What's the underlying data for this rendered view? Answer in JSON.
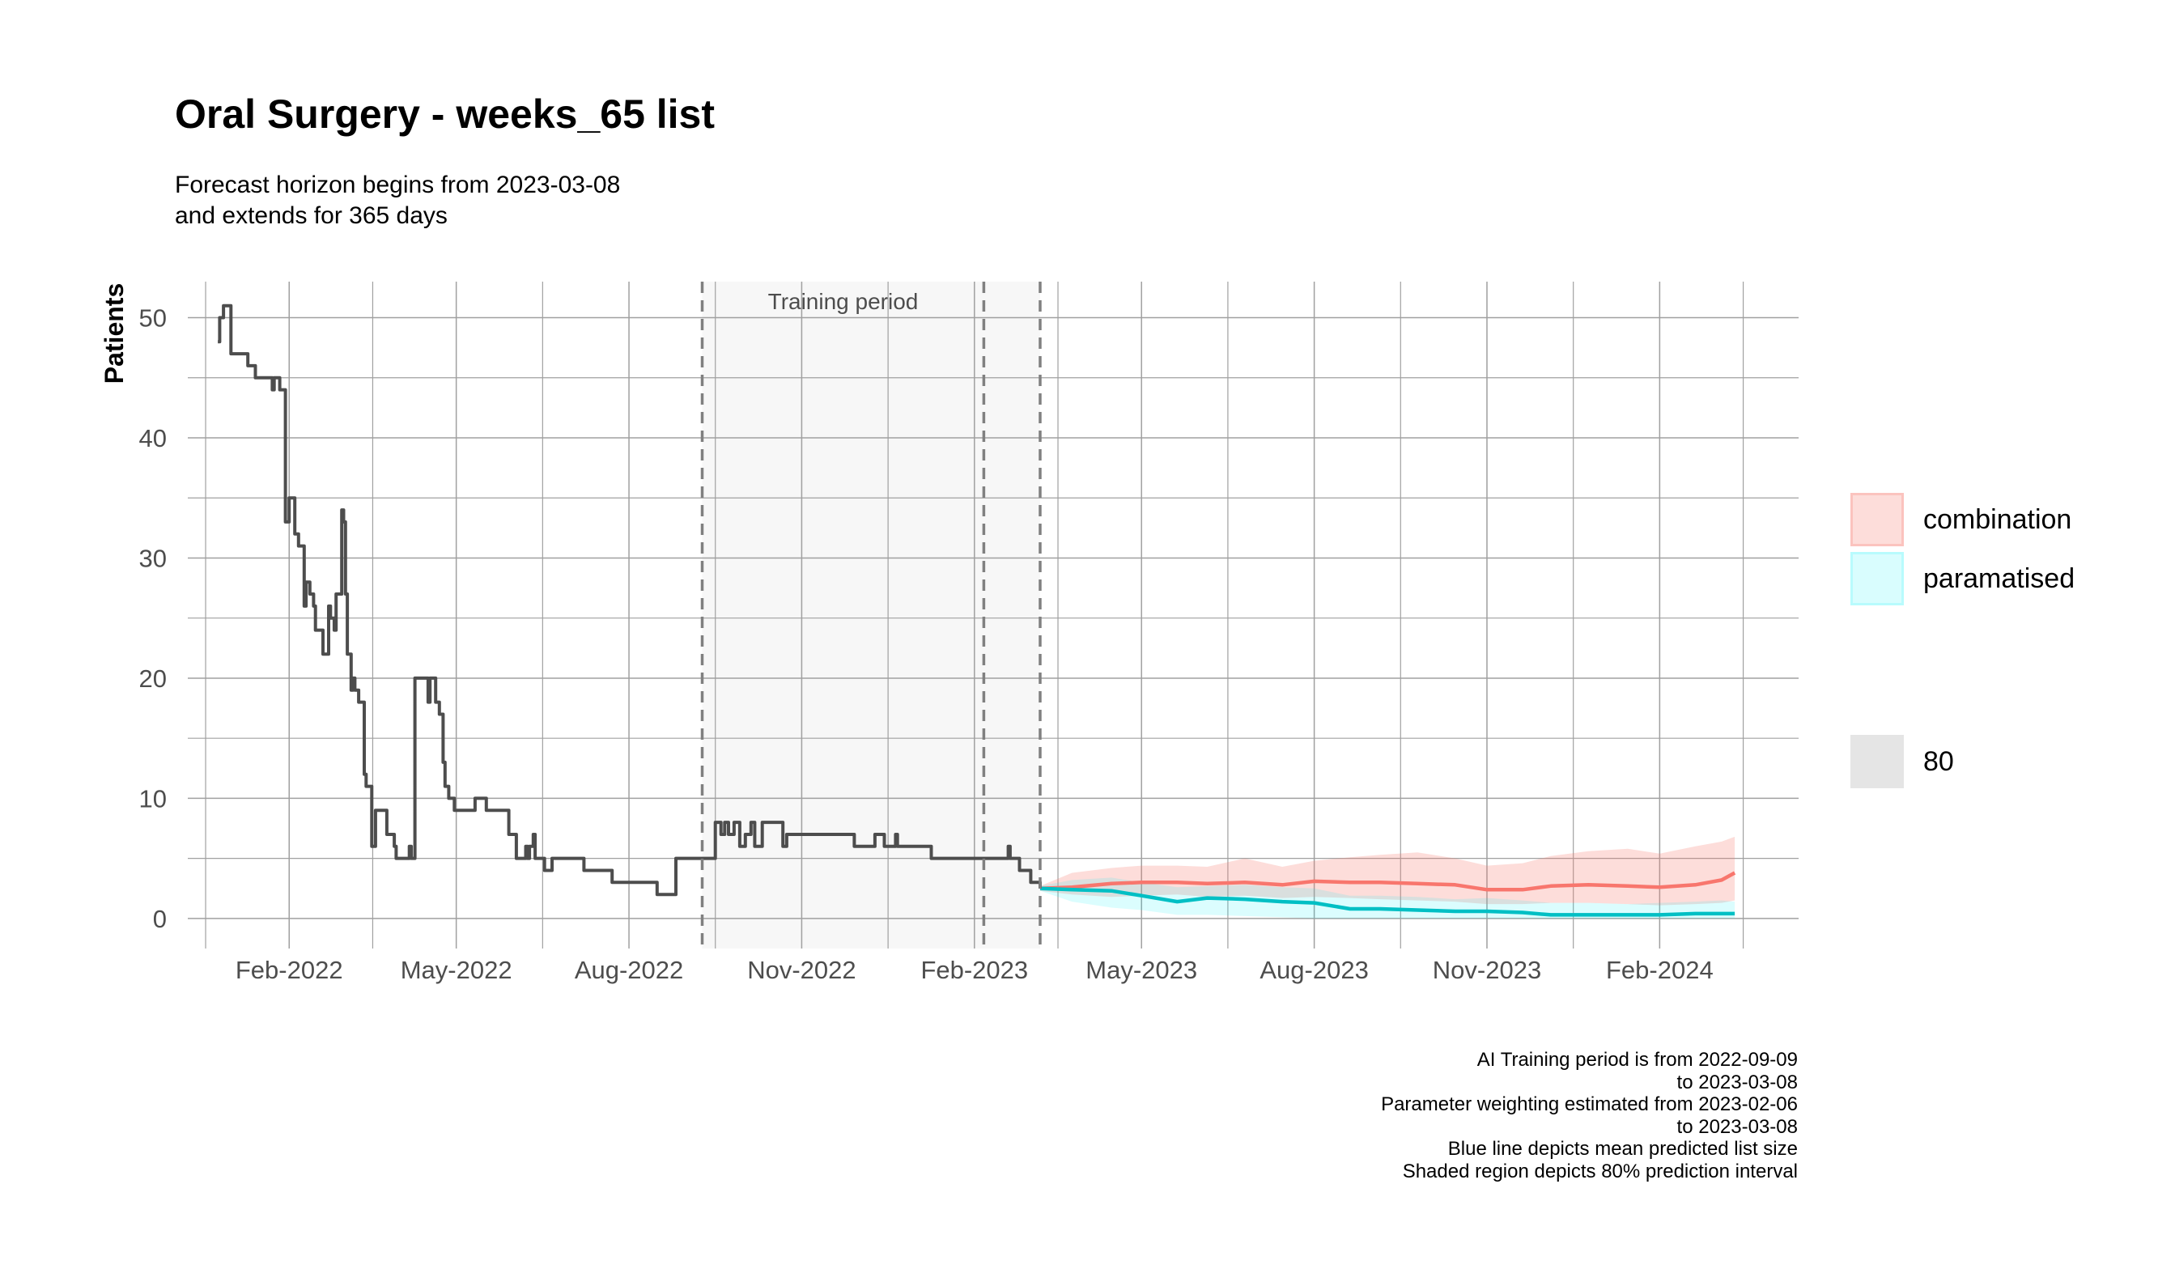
{
  "chart_data": {
    "type": "line",
    "title": "Oral Surgery - weeks_65 list",
    "subtitle": [
      "Forecast horizon begins from 2023-03-08",
      "and extends for 365 days"
    ],
    "xlabel": "",
    "ylabel": "Patients",
    "xlim": [
      "2021-12-09",
      "2024-04-15"
    ],
    "ylim": [
      -2.5,
      53
    ],
    "y_ticks": [
      0,
      10,
      20,
      30,
      40,
      50
    ],
    "x_ticks": [
      {
        "date": "2022-02-01",
        "label": "Feb-2022"
      },
      {
        "date": "2022-05-01",
        "label": "May-2022"
      },
      {
        "date": "2022-08-01",
        "label": "Aug-2022"
      },
      {
        "date": "2022-11-01",
        "label": "Nov-2022"
      },
      {
        "date": "2023-02-01",
        "label": "Feb-2023"
      },
      {
        "date": "2023-05-01",
        "label": "May-2023"
      },
      {
        "date": "2023-08-01",
        "label": "Aug-2023"
      },
      {
        "date": "2023-11-01",
        "label": "Nov-2023"
      },
      {
        "date": "2024-02-01",
        "label": "Feb-2024"
      }
    ],
    "grid": true,
    "legend_position": "right",
    "training_period": {
      "start": "2022-09-09",
      "end": "2023-03-08",
      "label": "Training period"
    },
    "vlines": [
      "2022-09-09",
      "2023-02-06",
      "2023-03-08"
    ],
    "observed": {
      "color": "#4d4d4d",
      "points": [
        [
          "2021-12-25",
          48
        ],
        [
          "2021-12-26",
          50
        ],
        [
          "2021-12-28",
          51
        ],
        [
          "2021-12-31",
          51
        ],
        [
          "2022-01-01",
          47
        ],
        [
          "2022-01-09",
          47
        ],
        [
          "2022-01-10",
          46
        ],
        [
          "2022-01-13",
          46
        ],
        [
          "2022-01-14",
          45
        ],
        [
          "2022-01-22",
          45
        ],
        [
          "2022-01-23",
          44
        ],
        [
          "2022-01-24",
          45
        ],
        [
          "2022-01-26",
          45
        ],
        [
          "2022-01-27",
          44
        ],
        [
          "2022-01-29",
          44
        ],
        [
          "2022-01-30",
          33
        ],
        [
          "2022-02-01",
          35
        ],
        [
          "2022-02-03",
          35
        ],
        [
          "2022-02-04",
          32
        ],
        [
          "2022-02-06",
          31
        ],
        [
          "2022-02-08",
          31
        ],
        [
          "2022-02-09",
          26
        ],
        [
          "2022-02-10",
          28
        ],
        [
          "2022-02-12",
          27
        ],
        [
          "2022-02-14",
          26
        ],
        [
          "2022-02-15",
          24
        ],
        [
          "2022-02-18",
          24
        ],
        [
          "2022-02-19",
          22
        ],
        [
          "2022-02-21",
          22
        ],
        [
          "2022-02-22",
          26
        ],
        [
          "2022-02-23",
          25
        ],
        [
          "2022-02-25",
          24
        ],
        [
          "2022-02-26",
          27
        ],
        [
          "2022-02-28",
          27
        ],
        [
          "2022-03-01",
          34
        ],
        [
          "2022-03-02",
          33
        ],
        [
          "2022-03-03",
          27
        ],
        [
          "2022-03-04",
          22
        ],
        [
          "2022-03-06",
          19
        ],
        [
          "2022-03-07",
          20
        ],
        [
          "2022-03-08",
          19
        ],
        [
          "2022-03-10",
          18
        ],
        [
          "2022-03-13",
          12
        ],
        [
          "2022-03-14",
          11
        ],
        [
          "2022-03-16",
          11
        ],
        [
          "2022-03-17",
          6
        ],
        [
          "2022-03-19",
          9
        ],
        [
          "2022-03-24",
          9
        ],
        [
          "2022-03-25",
          7
        ],
        [
          "2022-03-29",
          6
        ],
        [
          "2022-03-30",
          5
        ],
        [
          "2022-04-05",
          5
        ],
        [
          "2022-04-06",
          6
        ],
        [
          "2022-04-07",
          5
        ],
        [
          "2022-04-08",
          5
        ],
        [
          "2022-04-09",
          20
        ],
        [
          "2022-04-15",
          20
        ],
        [
          "2022-04-16",
          18
        ],
        [
          "2022-04-17",
          20
        ],
        [
          "2022-04-19",
          20
        ],
        [
          "2022-04-20",
          18
        ],
        [
          "2022-04-22",
          17
        ],
        [
          "2022-04-24",
          13
        ],
        [
          "2022-04-25",
          11
        ],
        [
          "2022-04-27",
          10
        ],
        [
          "2022-04-30",
          9
        ],
        [
          "2022-05-10",
          9
        ],
        [
          "2022-05-11",
          10
        ],
        [
          "2022-05-16",
          10
        ],
        [
          "2022-05-17",
          9
        ],
        [
          "2022-05-28",
          9
        ],
        [
          "2022-05-29",
          7
        ],
        [
          "2022-06-01",
          7
        ],
        [
          "2022-06-02",
          5
        ],
        [
          "2022-06-06",
          5
        ],
        [
          "2022-06-07",
          6
        ],
        [
          "2022-06-08",
          5
        ],
        [
          "2022-06-09",
          6
        ],
        [
          "2022-06-11",
          7
        ],
        [
          "2022-06-12",
          5
        ],
        [
          "2022-06-16",
          5
        ],
        [
          "2022-06-17",
          4
        ],
        [
          "2022-06-20",
          4
        ],
        [
          "2022-06-21",
          5
        ],
        [
          "2022-07-07",
          5
        ],
        [
          "2022-07-08",
          4
        ],
        [
          "2022-07-22",
          4
        ],
        [
          "2022-07-23",
          3
        ],
        [
          "2022-08-15",
          3
        ],
        [
          "2022-08-16",
          2
        ],
        [
          "2022-08-25",
          2
        ],
        [
          "2022-08-26",
          5
        ],
        [
          "2022-09-15",
          5
        ],
        [
          "2022-09-16",
          8
        ],
        [
          "2022-09-19",
          7
        ],
        [
          "2022-09-21",
          8
        ],
        [
          "2022-09-23",
          7
        ],
        [
          "2022-09-26",
          8
        ],
        [
          "2022-09-29",
          6
        ],
        [
          "2022-10-02",
          7
        ],
        [
          "2022-10-05",
          8
        ],
        [
          "2022-10-07",
          6
        ],
        [
          "2022-10-11",
          8
        ],
        [
          "2022-10-20",
          8
        ],
        [
          "2022-10-22",
          6
        ],
        [
          "2022-10-24",
          7
        ],
        [
          "2022-11-03",
          7
        ],
        [
          "2022-11-28",
          7
        ],
        [
          "2022-11-29",
          6
        ],
        [
          "2022-12-08",
          6
        ],
        [
          "2022-12-10",
          7
        ],
        [
          "2022-12-14",
          7
        ],
        [
          "2022-12-15",
          6
        ],
        [
          "2022-12-20",
          6
        ],
        [
          "2022-12-21",
          7
        ],
        [
          "2022-12-22",
          6
        ],
        [
          "2023-01-07",
          6
        ],
        [
          "2023-01-09",
          5
        ],
        [
          "2023-02-18",
          5
        ],
        [
          "2023-02-19",
          6
        ],
        [
          "2023-02-20",
          5
        ],
        [
          "2023-02-23",
          5
        ],
        [
          "2023-02-25",
          4
        ],
        [
          "2023-02-28",
          4
        ],
        [
          "2023-03-03",
          3
        ],
        [
          "2023-03-08",
          2.5
        ]
      ]
    },
    "series": [
      {
        "name": "combination",
        "line_color": "#f8766d",
        "band_color": "#f8766d",
        "x": [
          "2023-03-08",
          "2023-03-25",
          "2023-04-15",
          "2023-05-01",
          "2023-05-20",
          "2023-06-05",
          "2023-06-25",
          "2023-07-15",
          "2023-08-01",
          "2023-08-20",
          "2023-09-05",
          "2023-09-25",
          "2023-10-15",
          "2023-11-01",
          "2023-11-20",
          "2023-12-05",
          "2023-12-25",
          "2024-01-15",
          "2024-02-01",
          "2024-02-20",
          "2024-03-05",
          "2024-03-12"
        ],
        "mean": [
          2.5,
          2.6,
          2.9,
          3.0,
          3.0,
          2.9,
          3.0,
          2.8,
          3.1,
          3.0,
          3.0,
          2.9,
          2.8,
          2.4,
          2.4,
          2.7,
          2.8,
          2.7,
          2.6,
          2.8,
          3.2,
          3.8
        ],
        "lower": [
          2.3,
          2.0,
          1.8,
          1.9,
          2.0,
          1.8,
          1.9,
          1.7,
          1.8,
          1.7,
          1.6,
          1.5,
          1.4,
          1.2,
          1.2,
          1.3,
          1.3,
          1.2,
          1.1,
          1.2,
          1.3,
          1.5
        ],
        "upper": [
          2.7,
          3.8,
          4.2,
          4.4,
          4.4,
          4.3,
          5.0,
          4.3,
          4.8,
          5.1,
          5.3,
          5.5,
          5.0,
          4.4,
          4.6,
          5.2,
          5.6,
          5.8,
          5.4,
          6.0,
          6.4,
          6.8
        ]
      },
      {
        "name": "paramatised",
        "line_color": "#00bfc4",
        "band_color": "#00bfc4",
        "x": [
          "2023-03-08",
          "2023-03-25",
          "2023-04-15",
          "2023-05-01",
          "2023-05-20",
          "2023-06-05",
          "2023-06-25",
          "2023-07-15",
          "2023-08-01",
          "2023-08-20",
          "2023-09-05",
          "2023-09-25",
          "2023-10-15",
          "2023-11-01",
          "2023-11-20",
          "2023-12-05",
          "2023-12-25",
          "2024-01-15",
          "2024-02-01",
          "2024-02-20",
          "2024-03-05",
          "2024-03-12"
        ],
        "mean": [
          2.5,
          2.4,
          2.3,
          1.9,
          1.4,
          1.7,
          1.6,
          1.4,
          1.3,
          0.8,
          0.8,
          0.7,
          0.6,
          0.6,
          0.5,
          0.3,
          0.3,
          0.3,
          0.3,
          0.4,
          0.4,
          0.4
        ],
        "lower": [
          2.3,
          1.4,
          0.9,
          0.7,
          0.3,
          0.3,
          0.2,
          0.1,
          0.0,
          0.0,
          0.0,
          0.0,
          0.0,
          0.0,
          0.0,
          0.0,
          0.0,
          0.0,
          0.0,
          0.0,
          0.0,
          0.0
        ],
        "upper": [
          2.7,
          3.2,
          3.4,
          3.0,
          2.6,
          2.7,
          2.8,
          2.6,
          2.5,
          1.9,
          1.9,
          1.8,
          1.6,
          1.7,
          1.5,
          1.3,
          1.3,
          1.2,
          1.3,
          1.4,
          1.5,
          1.4
        ]
      }
    ],
    "legend": {
      "fill": [
        {
          "label": "combination",
          "color": "#f8766d"
        },
        {
          "label": "paramatised",
          "color": "#00bfc4"
        }
      ],
      "interval": {
        "label": "80",
        "color": "#e5e5e5"
      }
    },
    "caption": [
      "AI Training period is from 2022-09-09",
      "to 2023-03-08",
      "Parameter weighting estimated from 2023-02-06",
      "to 2023-03-08",
      "Blue line depicts mean predicted list size",
      "Shaded region depicts 80% prediction interval"
    ]
  }
}
